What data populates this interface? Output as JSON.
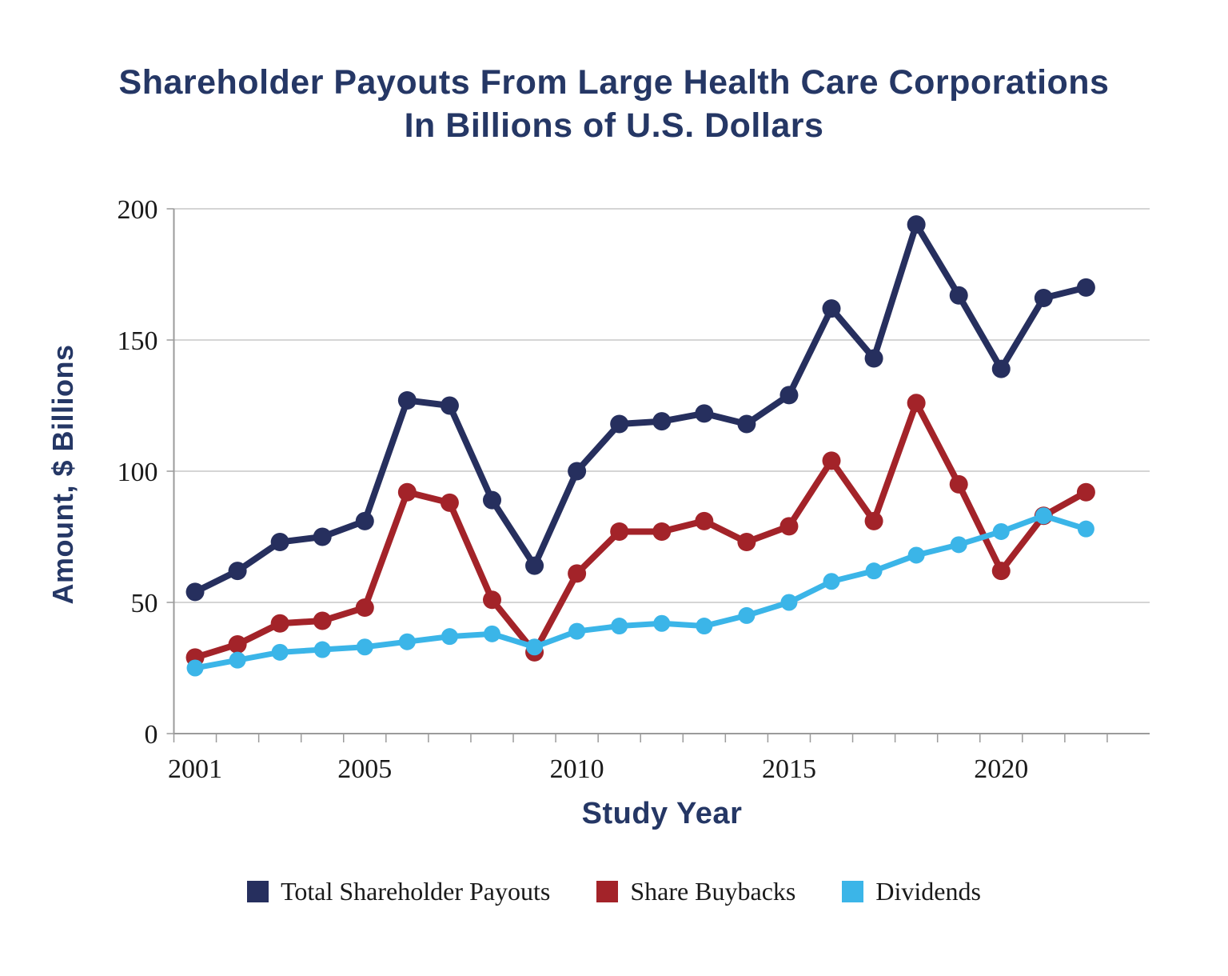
{
  "title": {
    "line1": "Shareholder Payouts From Large Health Care Corporations",
    "line2": "In Billions of U.S. Dollars"
  },
  "y_axis": {
    "label": "Amount, $ Billions",
    "tick_labels": [
      "0",
      "50",
      "100",
      "150",
      "200"
    ]
  },
  "x_axis": {
    "label": "Study Year",
    "tick_labels": [
      "2001",
      "2005",
      "2010",
      "2015",
      "2020"
    ]
  },
  "legend": {
    "items": [
      {
        "label": "Total Shareholder Payouts",
        "color": "#262F5E"
      },
      {
        "label": "Share Buybacks",
        "color": "#A32329"
      },
      {
        "label": "Dividends",
        "color": "#3BB5E8"
      }
    ]
  },
  "colors": {
    "title_text": "#253765",
    "tick_text": "#1a1a1a",
    "gridline": "#c7c7c7",
    "axis_line": "#9b9b9b",
    "background": "#ffffff"
  },
  "chart_data": {
    "type": "line",
    "title": "Shareholder Payouts From Large Health Care Corporations In Billions of U.S. Dollars",
    "xlabel": "Study Year",
    "ylabel": "Amount, $ Billions",
    "x": [
      2001,
      2002,
      2003,
      2004,
      2005,
      2006,
      2007,
      2008,
      2009,
      2010,
      2011,
      2012,
      2013,
      2014,
      2015,
      2016,
      2017,
      2018,
      2019,
      2020,
      2021,
      2022
    ],
    "series": [
      {
        "name": "Total Shareholder Payouts",
        "color": "#262F5E",
        "values": [
          54,
          62,
          73,
          75,
          81,
          127,
          125,
          89,
          64,
          100,
          118,
          119,
          122,
          118,
          129,
          162,
          143,
          194,
          167,
          139,
          166,
          170
        ]
      },
      {
        "name": "Share Buybacks",
        "color": "#A32329",
        "values": [
          29,
          34,
          42,
          43,
          48,
          92,
          88,
          51,
          31,
          61,
          77,
          77,
          81,
          73,
          79,
          104,
          81,
          126,
          95,
          62,
          83,
          92
        ]
      },
      {
        "name": "Dividends",
        "color": "#3BB5E8",
        "values": [
          25,
          28,
          31,
          32,
          33,
          35,
          37,
          38,
          33,
          39,
          41,
          42,
          41,
          45,
          50,
          58,
          62,
          68,
          72,
          77,
          83,
          78
        ]
      }
    ],
    "ylim": [
      0,
      200
    ],
    "y_tick_step": 50,
    "x_labeled_ticks": [
      2001,
      2005,
      2010,
      2015,
      2020
    ],
    "grid": true,
    "legend_position": "bottom"
  }
}
